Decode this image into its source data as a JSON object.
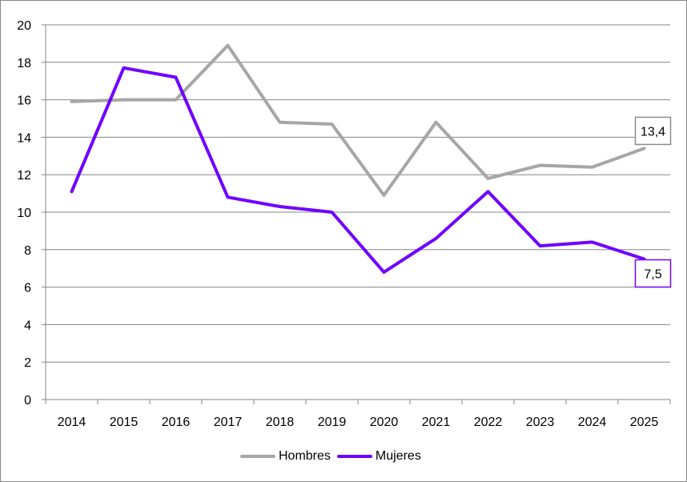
{
  "chart_data": {
    "type": "line",
    "title": "",
    "xlabel": "",
    "ylabel": "",
    "x": [
      "2014",
      "2015",
      "2016",
      "2017",
      "2018",
      "2019",
      "2020",
      "2021",
      "2022",
      "2023",
      "2024",
      "2025"
    ],
    "ylim": [
      0,
      20
    ],
    "yticks": [
      "0",
      "2",
      "4",
      "6",
      "8",
      "10",
      "12",
      "14",
      "16",
      "18",
      "20"
    ],
    "grid": true,
    "legend_position": "bottom",
    "series": [
      {
        "name": "Hombres",
        "color": "#a6a6a6",
        "values": [
          15.9,
          16.0,
          16.0,
          18.9,
          14.8,
          14.7,
          10.9,
          14.8,
          11.8,
          12.5,
          12.4,
          13.4
        ],
        "end_label": "13,4"
      },
      {
        "name": "Mujeres",
        "color": "#7000ff",
        "values": [
          11.1,
          17.7,
          17.2,
          10.8,
          10.3,
          10.0,
          6.8,
          8.6,
          11.1,
          8.2,
          8.4,
          7.5
        ],
        "end_label": "7,5"
      }
    ]
  }
}
